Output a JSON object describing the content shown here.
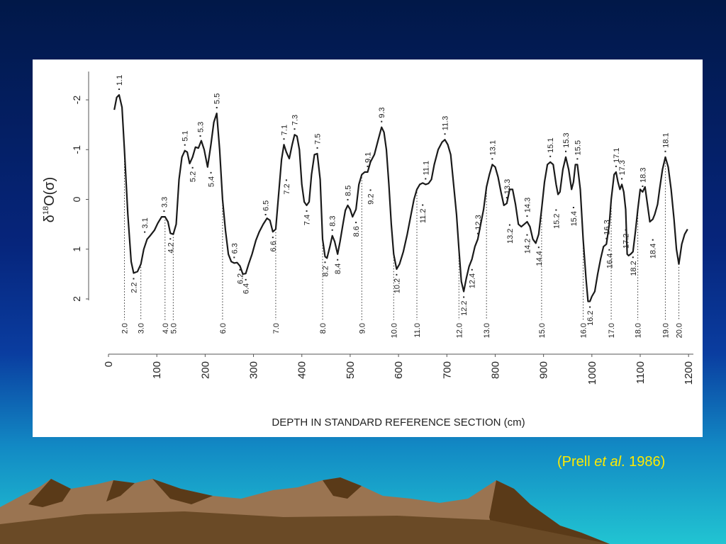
{
  "slide": {
    "citation_prefix": "(Prell ",
    "citation_italic": "et al",
    "citation_suffix": ". 1986)"
  },
  "colors": {
    "background_top": "#011848",
    "background_mid": "#0a3da0",
    "background_bottom": "#21c4d2",
    "citation": "#ffea00",
    "panel": "#ffffff",
    "curve": "#1a1a1a",
    "mountain_light": "#9a7451",
    "mountain_dark": "#5a3a18"
  },
  "chart_data": {
    "type": "line",
    "xlabel": "DEPTH IN STANDARD REFERENCE SECTION (cm)",
    "ylabel_parts": {
      "delta": "δ",
      "sup": "18",
      "rest": "O(σ)"
    },
    "xlim": [
      0,
      1210
    ],
    "ylim": [
      2.0,
      -2.4
    ],
    "y_inverted": true,
    "xticks": [
      0,
      100,
      200,
      300,
      400,
      500,
      600,
      700,
      800,
      900,
      1000,
      1100,
      1200
    ],
    "yticks": [
      -2,
      -1,
      0,
      1,
      2
    ],
    "series": [
      {
        "points": [
          [
            12,
            -1.8
          ],
          [
            17,
            -2.05
          ],
          [
            22,
            -2.1
          ],
          [
            28,
            -1.85
          ],
          [
            33,
            -1.0
          ],
          [
            40,
            0.3
          ],
          [
            47,
            1.25
          ],
          [
            52,
            1.48
          ],
          [
            60,
            1.45
          ],
          [
            67,
            1.3
          ],
          [
            73,
            1.0
          ],
          [
            80,
            0.8
          ],
          [
            87,
            0.72
          ],
          [
            95,
            0.62
          ],
          [
            102,
            0.48
          ],
          [
            110,
            0.35
          ],
          [
            117,
            0.35
          ],
          [
            123,
            0.45
          ],
          [
            128,
            0.68
          ],
          [
            134,
            0.7
          ],
          [
            140,
            0.5
          ],
          [
            146,
            -0.4
          ],
          [
            152,
            -0.85
          ],
          [
            158,
            -0.98
          ],
          [
            163,
            -0.95
          ],
          [
            168,
            -0.72
          ],
          [
            174,
            -0.85
          ],
          [
            180,
            -1.05
          ],
          [
            186,
            -1.03
          ],
          [
            192,
            -1.18
          ],
          [
            198,
            -1.0
          ],
          [
            205,
            -0.65
          ],
          [
            212,
            -1.1
          ],
          [
            218,
            -1.55
          ],
          [
            224,
            -1.73
          ],
          [
            230,
            -1.0
          ],
          [
            236,
            0.0
          ],
          [
            242,
            0.62
          ],
          [
            248,
            1.1
          ],
          [
            254,
            1.25
          ],
          [
            260,
            1.28
          ],
          [
            266,
            1.27
          ],
          [
            272,
            1.34
          ],
          [
            278,
            1.5
          ],
          [
            284,
            1.49
          ],
          [
            290,
            1.3
          ],
          [
            297,
            1.1
          ],
          [
            305,
            0.82
          ],
          [
            312,
            0.65
          ],
          [
            320,
            0.5
          ],
          [
            328,
            0.38
          ],
          [
            334,
            0.42
          ],
          [
            340,
            0.65
          ],
          [
            346,
            0.6
          ],
          [
            352,
            -0.1
          ],
          [
            358,
            -0.8
          ],
          [
            363,
            -1.1
          ],
          [
            368,
            -0.95
          ],
          [
            374,
            -0.82
          ],
          [
            380,
            -1.1
          ],
          [
            385,
            -1.3
          ],
          [
            390,
            -1.27
          ],
          [
            395,
            -1.0
          ],
          [
            400,
            -0.3
          ],
          [
            405,
            0.05
          ],
          [
            410,
            0.12
          ],
          [
            415,
            0.05
          ],
          [
            420,
            -0.5
          ],
          [
            426,
            -0.9
          ],
          [
            432,
            -0.92
          ],
          [
            438,
            -0.4
          ],
          [
            443,
            0.8
          ],
          [
            448,
            1.15
          ],
          [
            452,
            1.18
          ],
          [
            458,
            0.95
          ],
          [
            463,
            0.73
          ],
          [
            468,
            0.85
          ],
          [
            474,
            1.1
          ],
          [
            479,
            0.85
          ],
          [
            485,
            0.5
          ],
          [
            490,
            0.22
          ],
          [
            495,
            0.12
          ],
          [
            500,
            0.2
          ],
          [
            505,
            0.35
          ],
          [
            512,
            0.2
          ],
          [
            518,
            -0.3
          ],
          [
            524,
            -0.5
          ],
          [
            530,
            -0.55
          ],
          [
            536,
            -0.55
          ],
          [
            542,
            -0.75
          ],
          [
            550,
            -0.9
          ],
          [
            558,
            -1.2
          ],
          [
            565,
            -1.45
          ],
          [
            570,
            -1.35
          ],
          [
            575,
            -1.0
          ],
          [
            580,
            -0.3
          ],
          [
            585,
            0.5
          ],
          [
            590,
            1.1
          ],
          [
            596,
            1.4
          ],
          [
            602,
            1.3
          ],
          [
            610,
            1.05
          ],
          [
            618,
            0.7
          ],
          [
            626,
            0.3
          ],
          [
            632,
            0.0
          ],
          [
            638,
            -0.2
          ],
          [
            644,
            -0.3
          ],
          [
            650,
            -0.33
          ],
          [
            656,
            -0.3
          ],
          [
            662,
            -0.32
          ],
          [
            668,
            -0.4
          ],
          [
            674,
            -0.7
          ],
          [
            682,
            -1.0
          ],
          [
            690,
            -1.15
          ],
          [
            696,
            -1.2
          ],
          [
            702,
            -1.1
          ],
          [
            708,
            -0.9
          ],
          [
            714,
            -0.3
          ],
          [
            720,
            0.3
          ],
          [
            725,
            1.0
          ],
          [
            730,
            1.65
          ],
          [
            735,
            1.85
          ],
          [
            740,
            1.6
          ],
          [
            746,
            1.35
          ],
          [
            752,
            1.2
          ],
          [
            758,
            0.95
          ],
          [
            764,
            0.8
          ],
          [
            770,
            0.5
          ],
          [
            776,
            0.2
          ],
          [
            782,
            -0.25
          ],
          [
            788,
            -0.5
          ],
          [
            794,
            -0.7
          ],
          [
            800,
            -0.65
          ],
          [
            806,
            -0.45
          ],
          [
            812,
            -0.15
          ],
          [
            818,
            0.12
          ],
          [
            824,
            0.08
          ],
          [
            830,
            -0.2
          ],
          [
            836,
            -0.2
          ],
          [
            842,
            0.1
          ],
          [
            848,
            0.5
          ],
          [
            854,
            0.55
          ],
          [
            860,
            0.5
          ],
          [
            866,
            0.45
          ],
          [
            872,
            0.55
          ],
          [
            878,
            0.8
          ],
          [
            884,
            0.88
          ],
          [
            890,
            0.7
          ],
          [
            896,
            0.2
          ],
          [
            902,
            -0.35
          ],
          [
            908,
            -0.7
          ],
          [
            914,
            -0.75
          ],
          [
            920,
            -0.7
          ],
          [
            926,
            -0.3
          ],
          [
            930,
            -0.1
          ],
          [
            934,
            -0.15
          ],
          [
            940,
            -0.6
          ],
          [
            946,
            -0.85
          ],
          [
            952,
            -0.6
          ],
          [
            958,
            -0.2
          ],
          [
            962,
            -0.35
          ],
          [
            966,
            -0.7
          ],
          [
            970,
            -0.7
          ],
          [
            976,
            -0.2
          ],
          [
            982,
            0.8
          ],
          [
            988,
            1.6
          ],
          [
            992,
            2.05
          ],
          [
            996,
            2.05
          ],
          [
            1000,
            1.95
          ],
          [
            1006,
            1.85
          ],
          [
            1012,
            1.5
          ],
          [
            1018,
            1.2
          ],
          [
            1024,
            0.95
          ],
          [
            1030,
            0.9
          ],
          [
            1036,
            0.5
          ],
          [
            1040,
            0.0
          ],
          [
            1046,
            -0.5
          ],
          [
            1050,
            -0.55
          ],
          [
            1054,
            -0.35
          ],
          [
            1058,
            -0.2
          ],
          [
            1062,
            -0.3
          ],
          [
            1066,
            -0.15
          ],
          [
            1070,
            0.2
          ],
          [
            1073,
            1.1
          ],
          [
            1076,
            1.13
          ],
          [
            1080,
            1.1
          ],
          [
            1085,
            1.05
          ],
          [
            1090,
            0.65
          ],
          [
            1095,
            0.2
          ],
          [
            1100,
            -0.2
          ],
          [
            1105,
            -0.15
          ],
          [
            1110,
            -0.25
          ],
          [
            1115,
            0.1
          ],
          [
            1120,
            0.45
          ],
          [
            1126,
            0.4
          ],
          [
            1130,
            0.3
          ],
          [
            1136,
            0.1
          ],
          [
            1140,
            -0.2
          ],
          [
            1146,
            -0.6
          ],
          [
            1152,
            -0.85
          ],
          [
            1158,
            -0.65
          ],
          [
            1164,
            -0.2
          ],
          [
            1170,
            0.4
          ],
          [
            1175,
            1.0
          ],
          [
            1180,
            1.3
          ],
          [
            1186,
            0.9
          ],
          [
            1192,
            0.7
          ],
          [
            1198,
            0.6
          ]
        ]
      }
    ],
    "peak_labels": [
      {
        "x": 22,
        "y": -2.1,
        "text": "1.1"
      },
      {
        "x": 75,
        "y": 0.77,
        "text": "3.1"
      },
      {
        "x": 115,
        "y": 0.35,
        "text": "3.3"
      },
      {
        "x": 158,
        "y": -0.98,
        "text": "5.1"
      },
      {
        "x": 190,
        "y": -1.16,
        "text": "5.3"
      },
      {
        "x": 224,
        "y": -1.73,
        "text": "5.5"
      },
      {
        "x": 260,
        "y": 1.28,
        "text": "6.3"
      },
      {
        "x": 325,
        "y": 0.42,
        "text": "6.5"
      },
      {
        "x": 363,
        "y": -1.1,
        "text": "7.1"
      },
      {
        "x": 385,
        "y": -1.3,
        "text": "7.3"
      },
      {
        "x": 432,
        "y": -0.92,
        "text": "7.5"
      },
      {
        "x": 463,
        "y": 0.73,
        "text": "8.3"
      },
      {
        "x": 495,
        "y": 0.12,
        "text": "8.5"
      },
      {
        "x": 536,
        "y": -0.55,
        "text": "9.1"
      },
      {
        "x": 565,
        "y": -1.45,
        "text": "9.3"
      },
      {
        "x": 656,
        "y": -0.3,
        "text": "11.1"
      },
      {
        "x": 696,
        "y": -1.2,
        "text": "11.3"
      },
      {
        "x": 764,
        "y": 0.8,
        "text": "12.3"
      },
      {
        "x": 794,
        "y": -0.7,
        "text": "13.1"
      },
      {
        "x": 824,
        "y": 0.08,
        "text": "13.3"
      },
      {
        "x": 866,
        "y": 0.45,
        "text": "14.3"
      },
      {
        "x": 914,
        "y": -0.75,
        "text": "15.1"
      },
      {
        "x": 946,
        "y": -0.85,
        "text": "15.3"
      },
      {
        "x": 970,
        "y": -0.7,
        "text": "15.5"
      },
      {
        "x": 1030,
        "y": 0.9,
        "text": "16.3"
      },
      {
        "x": 1050,
        "y": -0.55,
        "text": "17.1"
      },
      {
        "x": 1062,
        "y": -0.3,
        "text": "17.3"
      },
      {
        "x": 1105,
        "y": -0.15,
        "text": "18.3"
      },
      {
        "x": 1152,
        "y": -0.85,
        "text": "18.1"
      }
    ],
    "trough_labels": [
      {
        "x": 52,
        "y": 1.48,
        "text": "2.2"
      },
      {
        "x": 128,
        "y": 0.68,
        "text": "4.2"
      },
      {
        "x": 174,
        "y": -0.75,
        "text": "5.2"
      },
      {
        "x": 212,
        "y": -0.65,
        "text": "5.4"
      },
      {
        "x": 272,
        "y": 1.3,
        "text": "6.2"
      },
      {
        "x": 284,
        "y": 1.5,
        "text": "6.4"
      },
      {
        "x": 340,
        "y": 0.65,
        "text": "6.6"
      },
      {
        "x": 368,
        "y": -0.5,
        "text": "7.2"
      },
      {
        "x": 410,
        "y": 0.12,
        "text": "7.4"
      },
      {
        "x": 448,
        "y": 1.15,
        "text": "8.2"
      },
      {
        "x": 474,
        "y": 1.1,
        "text": "8.4"
      },
      {
        "x": 512,
        "y": 0.35,
        "text": "8.6"
      },
      {
        "x": 542,
        "y": -0.3,
        "text": "9.2"
      },
      {
        "x": 596,
        "y": 1.4,
        "text": "10.2"
      },
      {
        "x": 650,
        "y": 0.0,
        "text": "11.2"
      },
      {
        "x": 735,
        "y": 1.85,
        "text": "12.2"
      },
      {
        "x": 752,
        "y": 1.3,
        "text": "12.4"
      },
      {
        "x": 830,
        "y": 0.4,
        "text": "13.2"
      },
      {
        "x": 866,
        "y": 0.6,
        "text": "14.2"
      },
      {
        "x": 890,
        "y": 0.85,
        "text": "14.4"
      },
      {
        "x": 926,
        "y": 0.1,
        "text": "15.2"
      },
      {
        "x": 962,
        "y": 0.05,
        "text": "15.4"
      },
      {
        "x": 996,
        "y": 2.05,
        "text": "16.2"
      },
      {
        "x": 1036,
        "y": 0.9,
        "text": "16.4"
      },
      {
        "x": 1070,
        "y": 0.5,
        "text": "17.2"
      },
      {
        "x": 1085,
        "y": 1.05,
        "text": "18.2"
      },
      {
        "x": 1126,
        "y": 0.7,
        "text": "18.4"
      }
    ],
    "boundary_labels": [
      {
        "x": 33,
        "text": "2.0"
      },
      {
        "x": 67,
        "text": "3.0"
      },
      {
        "x": 117,
        "text": "4.0"
      },
      {
        "x": 134,
        "text": "5.0"
      },
      {
        "x": 236,
        "text": "6.0"
      },
      {
        "x": 346,
        "text": "7.0"
      },
      {
        "x": 443,
        "text": "8.0"
      },
      {
        "x": 524,
        "text": "9.0"
      },
      {
        "x": 590,
        "text": "10.0"
      },
      {
        "x": 638,
        "text": "11.0"
      },
      {
        "x": 725,
        "text": "12.0"
      },
      {
        "x": 782,
        "text": "13.0"
      },
      {
        "x": 896,
        "text": "15.0"
      },
      {
        "x": 982,
        "text": "16.0"
      },
      {
        "x": 1040,
        "text": "17.0"
      },
      {
        "x": 1095,
        "text": "18.0"
      },
      {
        "x": 1152,
        "text": "19.0"
      },
      {
        "x": 1180,
        "text": "20.0"
      }
    ]
  }
}
